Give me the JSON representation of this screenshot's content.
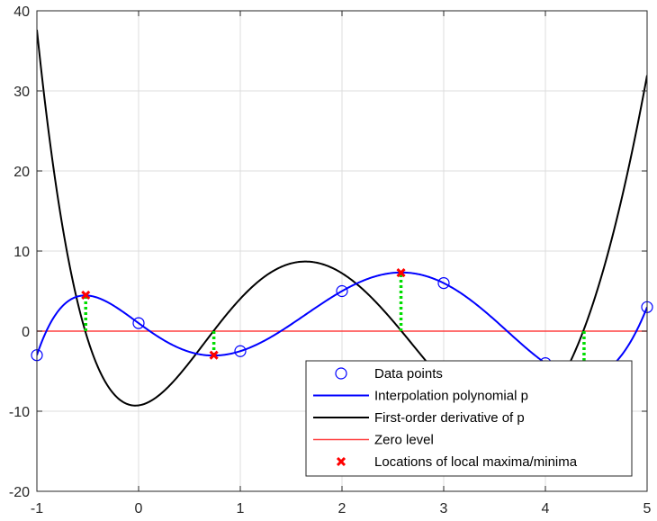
{
  "chart_data": {
    "type": "line",
    "title": "",
    "xlabel": "",
    "ylabel": "",
    "xlim": [
      -1,
      5
    ],
    "ylim": [
      -20,
      40
    ],
    "x_ticks": [
      -1,
      0,
      1,
      2,
      3,
      4,
      5
    ],
    "y_ticks": [
      -20,
      -10,
      0,
      10,
      20,
      30,
      40
    ],
    "grid": true,
    "legend_position": "bottom-right",
    "colors": {
      "data_points": "#0000ff",
      "interpolation": "#0000ff",
      "derivative": "#000000",
      "zero_level": "#ff4040",
      "extrema": "#ff0000",
      "drop_lines": "#00dd00",
      "grid": "#dcdcdc",
      "axes": "#262626"
    },
    "data_points": {
      "x": [
        -1,
        0,
        1,
        2,
        3,
        4,
        5
      ],
      "y": [
        -3,
        1,
        -2.5,
        5,
        6,
        -4,
        3
      ]
    },
    "extrema": {
      "x": [
        -0.52,
        0.74,
        2.58,
        4.38
      ],
      "y": [
        4.5,
        -3.0,
        7.3,
        -6.6
      ]
    },
    "legend": [
      {
        "key": "data_points",
        "label": "Data points",
        "marker": "circle"
      },
      {
        "key": "interpolation",
        "label": "Interpolation polynomial p",
        "marker": "line"
      },
      {
        "key": "derivative",
        "label": "First-order derivative of p",
        "marker": "line"
      },
      {
        "key": "zero_level",
        "label": "Zero level",
        "marker": "line"
      },
      {
        "key": "extrema",
        "label": "Locations of local maxima/minima",
        "marker": "cross"
      }
    ]
  }
}
